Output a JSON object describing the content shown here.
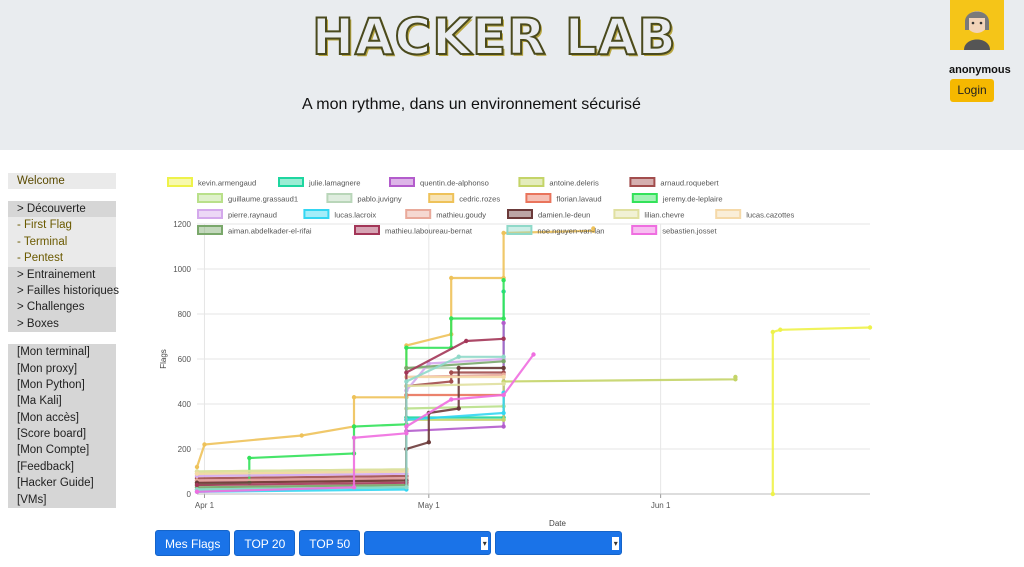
{
  "header": {
    "logo_text": "HACKER LAB",
    "subtitle": "A mon rythme, dans un environnement sécurisé",
    "username": "anonymous",
    "login_label": "Login"
  },
  "sidebar": {
    "welcome": "Welcome",
    "sections": [
      [
        {
          "label": "> Découverte",
          "sub": false
        },
        {
          "label": "- First Flag",
          "sub": true
        },
        {
          "label": "- Terminal",
          "sub": true
        },
        {
          "label": "- Pentest",
          "sub": true
        },
        {
          "label": "> Entrainement",
          "sub": false
        },
        {
          "label": "> Failles historiques",
          "sub": false
        },
        {
          "label": "> Challenges",
          "sub": false
        },
        {
          "label": "> Boxes",
          "sub": false
        }
      ],
      [
        {
          "label": "[Mon terminal]",
          "sub": false
        },
        {
          "label": "[Mon proxy]",
          "sub": false
        },
        {
          "label": "[Mon Python]",
          "sub": false
        },
        {
          "label": "[Ma Kali]",
          "sub": false
        },
        {
          "label": "[Mon accès]",
          "sub": false
        },
        {
          "label": "[Score board]",
          "sub": false
        },
        {
          "label": "[Mon Compte]",
          "sub": false
        },
        {
          "label": "[Feedback]",
          "sub": false
        },
        {
          "label": "[Hacker Guide]",
          "sub": false
        },
        {
          "label": "[VMs]",
          "sub": false
        }
      ]
    ]
  },
  "buttons": {
    "mes_flags": "Mes Flags",
    "top20": "TOP 20",
    "top50": "TOP 50"
  },
  "chart_data": {
    "type": "line",
    "xlabel": "Date",
    "ylabel": "Flags",
    "ylim": [
      0,
      1200
    ],
    "yticks": [
      0,
      200,
      400,
      600,
      800,
      1000,
      1200
    ],
    "xticks": [
      {
        "label": "Apr 1",
        "day": 0
      },
      {
        "label": "May 1",
        "day": 30
      },
      {
        "label": "Jun 1",
        "day": 61
      }
    ],
    "xrange_days": [
      -1,
      89
    ],
    "grid": true,
    "legend_position": "top",
    "series": [
      {
        "name": "kevin.armengaud",
        "color": "#eef24a",
        "points": [
          [
            76,
            0
          ],
          [
            76,
            720
          ],
          [
            77,
            730
          ],
          [
            89,
            740
          ]
        ]
      },
      {
        "name": "julie.lamagnere",
        "color": "#1ed6a0",
        "points": [
          [
            -1,
            20
          ],
          [
            27,
            30
          ],
          [
            27,
            340
          ],
          [
            40,
            340
          ],
          [
            40,
            900
          ]
        ]
      },
      {
        "name": "quentin.de-alphonso",
        "color": "#b35ccc",
        "points": [
          [
            -1,
            60
          ],
          [
            27,
            70
          ],
          [
            27,
            280
          ],
          [
            40,
            300
          ],
          [
            40,
            760
          ]
        ]
      },
      {
        "name": "antoine.deleris",
        "color": "#c4d468",
        "points": [
          [
            -1,
            90
          ],
          [
            27,
            100
          ],
          [
            27,
            330
          ],
          [
            40,
            330
          ],
          [
            40,
            500
          ],
          [
            71,
            510
          ],
          [
            71,
            520
          ]
        ]
      },
      {
        "name": "arnaud.roquebert",
        "color": "#a24d4d",
        "points": [
          [
            -1,
            70
          ],
          [
            27,
            80
          ],
          [
            27,
            480
          ],
          [
            33,
            500
          ],
          [
            33,
            540
          ],
          [
            40,
            540
          ]
        ]
      },
      {
        "name": "guillaume.grassaud1",
        "color": "#b9e08a",
        "points": [
          [
            -1,
            100
          ],
          [
            27,
            110
          ],
          [
            27,
            380
          ],
          [
            40,
            390
          ]
        ]
      },
      {
        "name": "pablo.juvigny",
        "color": "#b9d6b9",
        "points": [
          [
            -1,
            30
          ],
          [
            27,
            40
          ],
          [
            27,
            560
          ],
          [
            40,
            560
          ]
        ]
      },
      {
        "name": "cedric.rozes",
        "color": "#eec25a",
        "points": [
          [
            -1,
            120
          ],
          [
            0,
            220
          ],
          [
            13,
            260
          ],
          [
            20,
            300
          ],
          [
            20,
            430
          ],
          [
            27,
            430
          ],
          [
            27,
            660
          ],
          [
            33,
            710
          ],
          [
            33,
            960
          ],
          [
            40,
            960
          ],
          [
            40,
            1160
          ],
          [
            52,
            1170
          ],
          [
            52,
            1180
          ]
        ]
      },
      {
        "name": "florian.lavaud",
        "color": "#e9745c",
        "points": [
          [
            -1,
            50
          ],
          [
            27,
            60
          ],
          [
            27,
            440
          ],
          [
            40,
            440
          ]
        ]
      },
      {
        "name": "jeremy.de-leplaire",
        "color": "#33e25a",
        "points": [
          [
            -1,
            40
          ],
          [
            6,
            50
          ],
          [
            6,
            160
          ],
          [
            20,
            180
          ],
          [
            20,
            300
          ],
          [
            27,
            310
          ],
          [
            27,
            650
          ],
          [
            33,
            650
          ],
          [
            33,
            780
          ],
          [
            40,
            780
          ],
          [
            40,
            950
          ]
        ]
      },
      {
        "name": "pierre.raynaud",
        "color": "#d4a9ec",
        "points": [
          [
            -1,
            80
          ],
          [
            27,
            90
          ],
          [
            27,
            460
          ],
          [
            30,
            580
          ],
          [
            40,
            600
          ]
        ]
      },
      {
        "name": "lucas.lacroix",
        "color": "#33d6f2",
        "points": [
          [
            -1,
            10
          ],
          [
            27,
            20
          ],
          [
            27,
            330
          ],
          [
            40,
            360
          ],
          [
            40,
            450
          ]
        ]
      },
      {
        "name": "mathieu.goudy",
        "color": "#e9a99a",
        "points": [
          [
            -1,
            60
          ],
          [
            27,
            70
          ],
          [
            27,
            520
          ],
          [
            40,
            530
          ]
        ]
      },
      {
        "name": "damien.le-deun",
        "color": "#6b3a3a",
        "points": [
          [
            -1,
            50
          ],
          [
            27,
            60
          ],
          [
            27,
            200
          ],
          [
            30,
            230
          ],
          [
            30,
            360
          ],
          [
            34,
            380
          ],
          [
            34,
            560
          ],
          [
            40,
            560
          ]
        ]
      },
      {
        "name": "lilian.chevre",
        "color": "#e0e0a0",
        "points": [
          [
            -1,
            100
          ],
          [
            27,
            110
          ],
          [
            27,
            480
          ],
          [
            40,
            490
          ]
        ]
      },
      {
        "name": "lucas.cazottes",
        "color": "#f5d9a8",
        "points": [
          [
            -1,
            90
          ],
          [
            27,
            100
          ],
          [
            27,
            520
          ],
          [
            40,
            520
          ]
        ]
      },
      {
        "name": "aiman.abdelkader-el-rifai",
        "color": "#7aa86b",
        "points": [
          [
            -1,
            30
          ],
          [
            27,
            40
          ],
          [
            27,
            560
          ],
          [
            40,
            590
          ]
        ]
      },
      {
        "name": "mathieu.laboureau-bernat",
        "color": "#a33658",
        "points": [
          [
            -1,
            40
          ],
          [
            27,
            50
          ],
          [
            27,
            540
          ],
          [
            35,
            680
          ],
          [
            40,
            690
          ]
        ]
      },
      {
        "name": "noe.nguyen-van-lan",
        "color": "#8fd9c9",
        "points": [
          [
            -1,
            20
          ],
          [
            27,
            30
          ],
          [
            27,
            500
          ],
          [
            34,
            610
          ],
          [
            40,
            610
          ]
        ]
      },
      {
        "name": "sebastien.josset",
        "color": "#ef6ee0",
        "points": [
          [
            -1,
            10
          ],
          [
            20,
            30
          ],
          [
            20,
            250
          ],
          [
            27,
            270
          ],
          [
            27,
            300
          ],
          [
            33,
            420
          ],
          [
            40,
            440
          ],
          [
            44,
            620
          ]
        ]
      }
    ]
  }
}
